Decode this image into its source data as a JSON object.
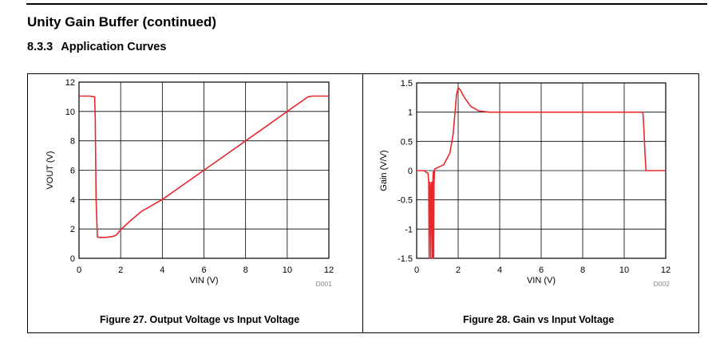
{
  "header": {
    "title": "Unity Gain Buffer (continued)",
    "section_number": "8.3.3",
    "section_title": "Application Curves"
  },
  "figures": [
    {
      "caption": "Figure 27. Output Voltage vs Input Voltage",
      "code": "D001"
    },
    {
      "caption": "Figure 28. Gain vs Input Voltage",
      "code": "D002"
    }
  ],
  "chart_data": [
    {
      "type": "line",
      "xlabel": "VIN (V)",
      "ylabel": "VOUT (V)",
      "xlim": [
        0,
        12
      ],
      "ylim": [
        0,
        12
      ],
      "xticks": [
        0,
        2,
        4,
        6,
        8,
        10,
        12
      ],
      "yticks": [
        0,
        2,
        4,
        6,
        8,
        10,
        12
      ],
      "grid": true,
      "color": "#e8282b",
      "series": [
        {
          "x": [
            0,
            0.5,
            0.75,
            0.78,
            0.82,
            0.88,
            1.0,
            1.3,
            1.6,
            1.75,
            1.85,
            2.0,
            2.5,
            3.0,
            3.5,
            4.0,
            5.0,
            6.0,
            7.0,
            8.0,
            9.0,
            10.0,
            11.0,
            11.2,
            12.0
          ],
          "y": [
            11.05,
            11.05,
            11.0,
            9.5,
            4.0,
            1.45,
            1.42,
            1.43,
            1.48,
            1.55,
            1.68,
            1.95,
            2.6,
            3.2,
            3.6,
            4.0,
            5.0,
            6.0,
            7.0,
            8.0,
            9.0,
            10.0,
            11.0,
            11.05,
            11.05
          ]
        }
      ]
    },
    {
      "type": "line",
      "xlabel": "VIN (V)",
      "ylabel": "Gain (V/V)",
      "xlim": [
        0,
        12
      ],
      "ylim": [
        -1.5,
        1.5
      ],
      "xticks": [
        0,
        2,
        4,
        6,
        8,
        10,
        12
      ],
      "yticks": [
        -1.5,
        -1,
        -0.5,
        0,
        0.5,
        1,
        1.5
      ],
      "grid": true,
      "color": "#e8282b",
      "series": [
        {
          "x": [
            0,
            0.35,
            0.55,
            0.58,
            0.6,
            0.62,
            0.64,
            0.66,
            0.68,
            0.7,
            0.72,
            0.74,
            0.76,
            0.78,
            0.8,
            0.82,
            0.84,
            0.86,
            0.88,
            1.0,
            1.3,
            1.6,
            1.75,
            1.85,
            1.92,
            2.0,
            2.1,
            2.3,
            2.6,
            3.0,
            3.5,
            4.0,
            6.0,
            8.0,
            10.0,
            10.9,
            10.95,
            11.0,
            11.05,
            11.1,
            11.5,
            12.0
          ],
          "y": [
            0,
            0,
            -0.05,
            -0.2,
            -1.5,
            -0.3,
            -0.2,
            -0.5,
            -1.5,
            -0.3,
            -0.2,
            -0.5,
            -1.5,
            -0.2,
            -0.02,
            -1.5,
            -0.2,
            0.02,
            0.03,
            0.05,
            0.1,
            0.3,
            0.6,
            1.0,
            1.3,
            1.42,
            1.38,
            1.25,
            1.1,
            1.02,
            1.0,
            1.0,
            1.0,
            1.0,
            1.0,
            1.0,
            0.7,
            0.3,
            0.0,
            0.0,
            0.0,
            0.0
          ]
        }
      ]
    }
  ]
}
